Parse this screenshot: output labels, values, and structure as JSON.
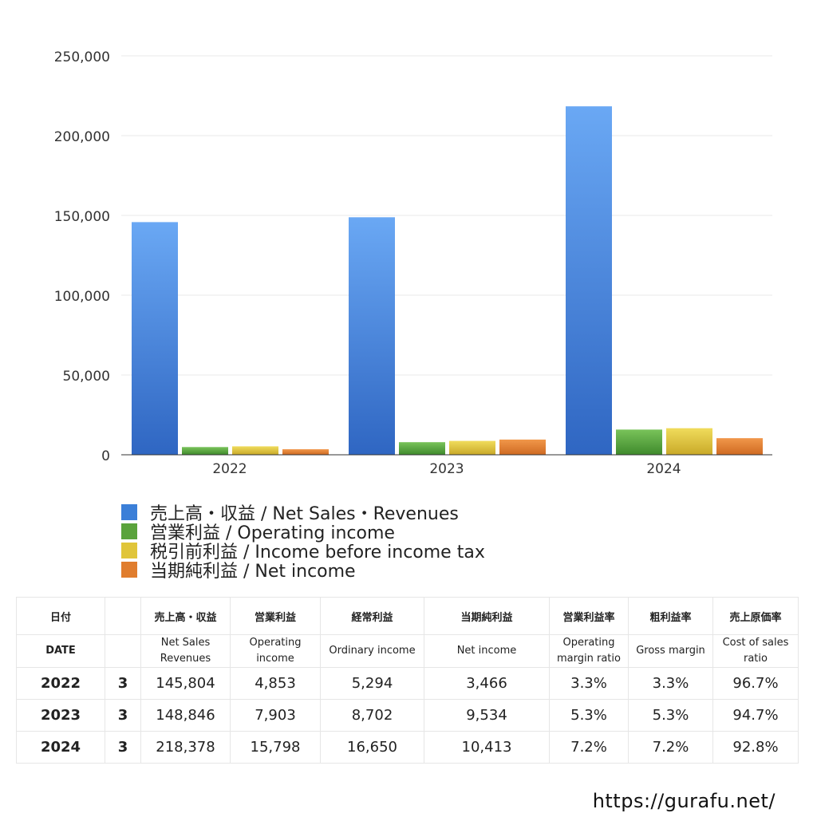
{
  "chart_data": {
    "type": "bar",
    "categories": [
      "2022",
      "2023",
      "2024"
    ],
    "series": [
      {
        "name": "売上高・収益 / Net Sales・Revenues",
        "values": [
          145804,
          148846,
          218378
        ],
        "color": "#3b7fd8"
      },
      {
        "name": "営業利益 / Operating income",
        "values": [
          4853,
          7903,
          15798
        ],
        "color": "#5aa33c"
      },
      {
        "name": "税引前利益 / Income before income tax",
        "values": [
          5294,
          8702,
          16650
        ],
        "color": "#e0c53a"
      },
      {
        "name": "当期純利益 / Net income",
        "values": [
          3466,
          9534,
          10413
        ],
        "color": "#e07d2e"
      }
    ],
    "yticks": [
      "0",
      "50,000",
      "100,000",
      "150,000",
      "200,000",
      "250,000"
    ],
    "ylim": [
      0,
      250000
    ],
    "grid": true,
    "legend_position": "bottom"
  },
  "table": {
    "header_ja": [
      "日付",
      "",
      "売上高・収益",
      "営業利益",
      "経常利益",
      "当期純利益",
      "営業利益率",
      "粗利益率",
      "売上原価率"
    ],
    "header_en": [
      [
        "DATE"
      ],
      [
        ""
      ],
      [
        "Net Sales",
        "Revenues"
      ],
      [
        "Operating",
        "income"
      ],
      [
        "Ordinary income"
      ],
      [
        "Net income"
      ],
      [
        "Operating",
        "margin ratio"
      ],
      [
        "Gross margin"
      ],
      [
        "Cost of sales",
        "ratio"
      ]
    ],
    "rows": [
      [
        "2022",
        "3",
        "145,804",
        "4,853",
        "5,294",
        "3,466",
        "3.3%",
        "3.3%",
        "96.7%"
      ],
      [
        "2023",
        "3",
        "148,846",
        "7,903",
        "8,702",
        "9,534",
        "5.3%",
        "5.3%",
        "94.7%"
      ],
      [
        "2024",
        "3",
        "218,378",
        "15,798",
        "16,650",
        "10,413",
        "7.2%",
        "7.2%",
        "92.8%"
      ]
    ]
  },
  "credit": "https://gurafu.net/"
}
